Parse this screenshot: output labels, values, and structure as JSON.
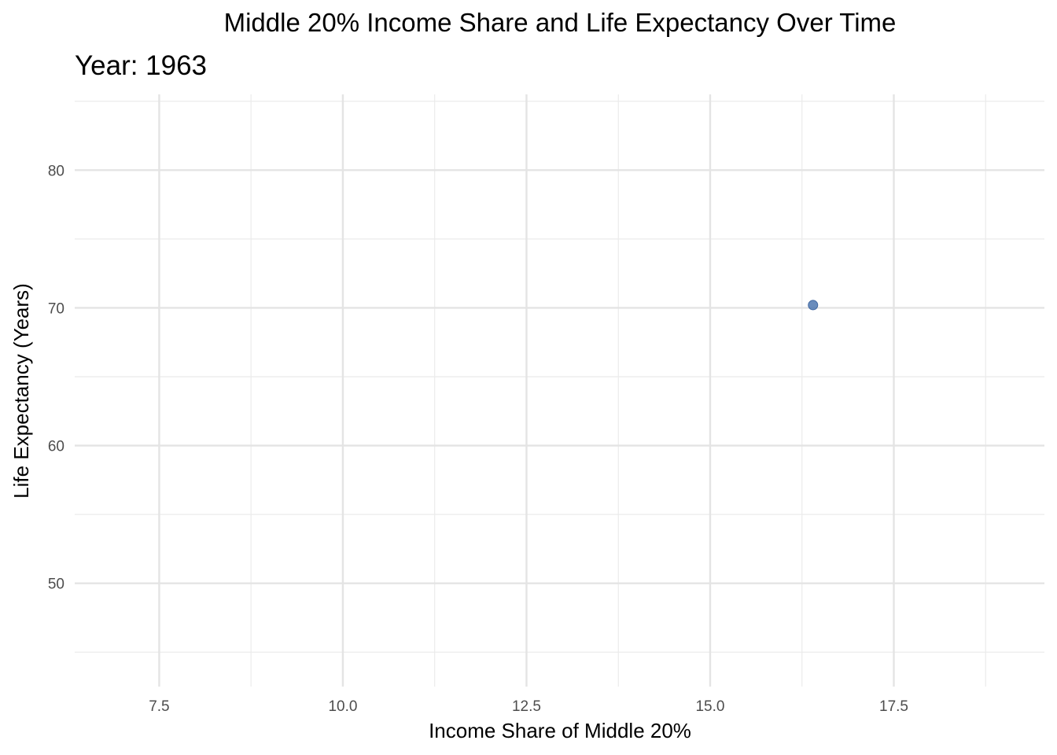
{
  "chart_data": {
    "type": "scatter",
    "title": "Middle 20% Income Share and Life Expectancy Over Time",
    "subtitle": "Year: 1963",
    "xlabel": "Income Share of Middle 20%",
    "ylabel": "Life Expectancy (Years)",
    "xlim": [
      6.35,
      19.55
    ],
    "ylim": [
      42.5,
      85.5
    ],
    "x_ticks": [
      7.5,
      10.0,
      12.5,
      15.0,
      17.5
    ],
    "x_tick_labels": [
      "7.5",
      "10.0",
      "12.5",
      "15.0",
      "17.5"
    ],
    "y_ticks": [
      50,
      60,
      70,
      80
    ],
    "y_tick_labels": [
      "50",
      "60",
      "70",
      "80"
    ],
    "grid": true,
    "point_color": "#4f78b0",
    "points": [
      {
        "x": 16.4,
        "y": 70.2
      }
    ]
  }
}
